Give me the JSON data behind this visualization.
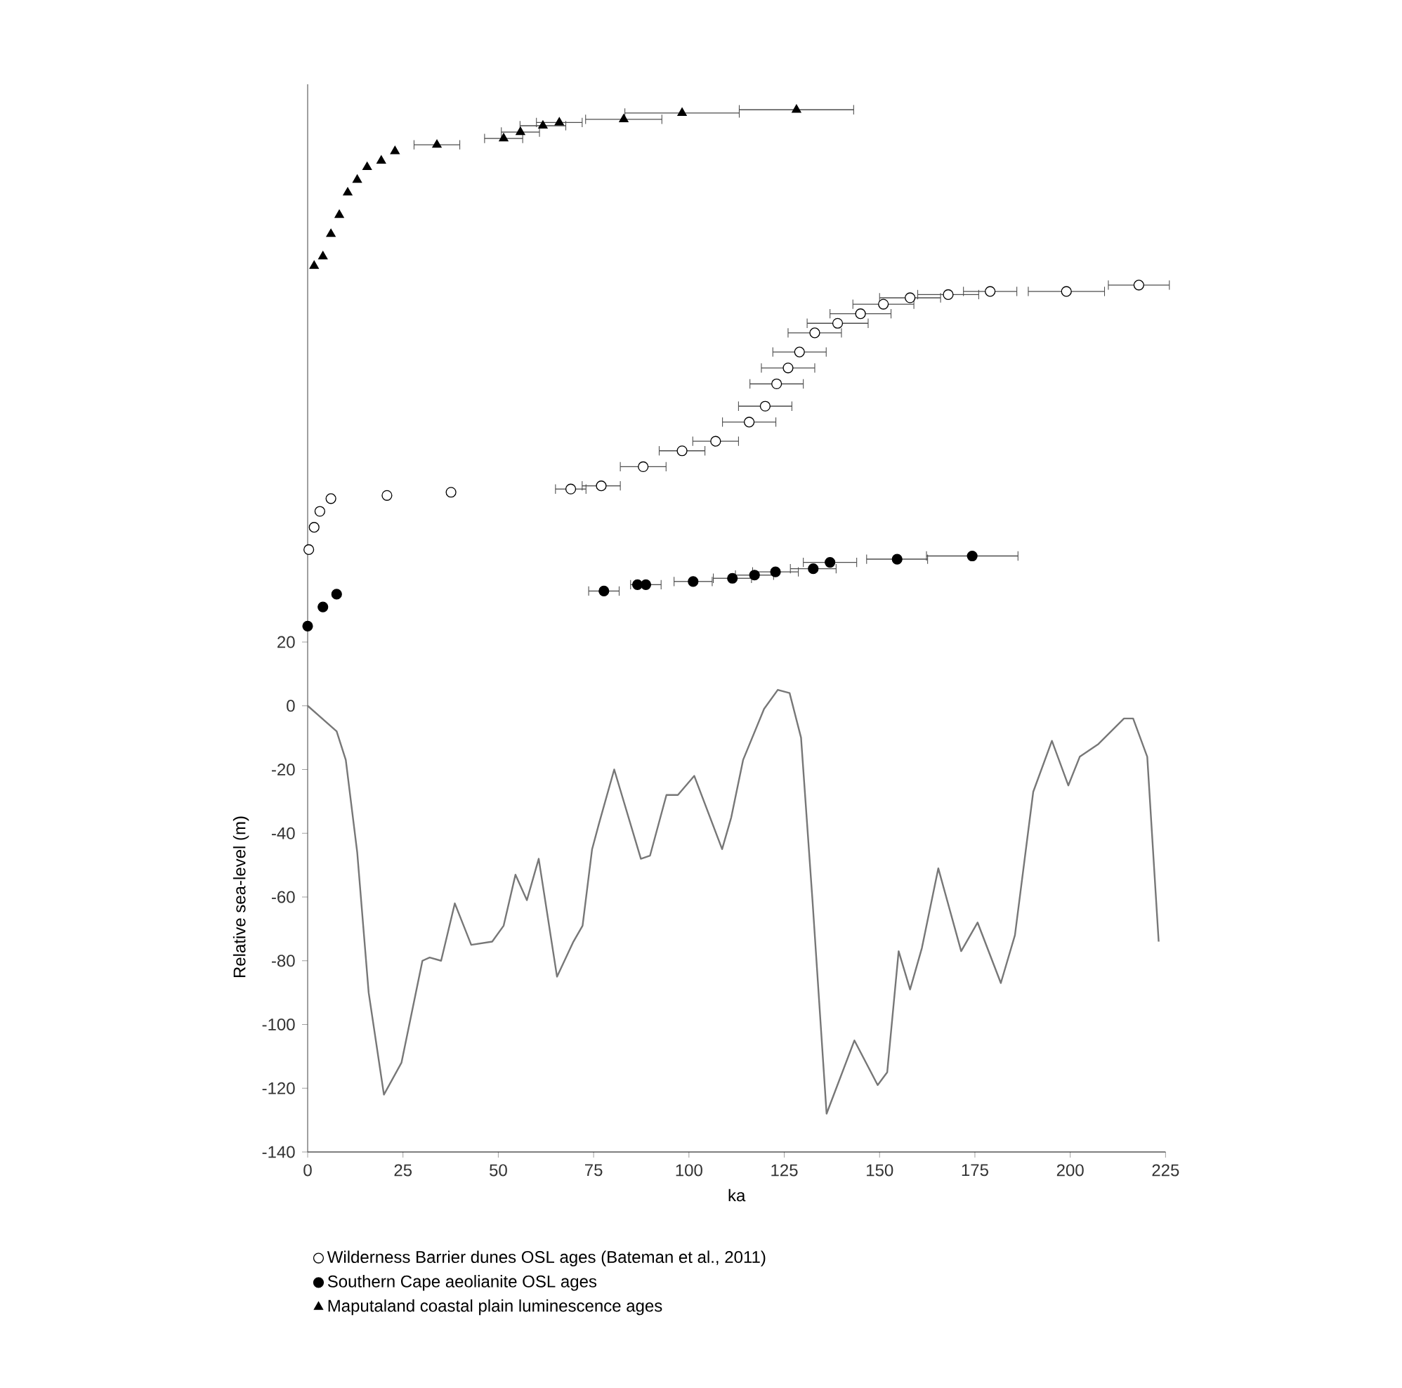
{
  "chart_data": {
    "type": "line",
    "xlabel": "ka",
    "ylabel": "Relative sea-level (m)",
    "xlim": [
      0,
      225
    ],
    "xticks": [
      0,
      25,
      50,
      75,
      100,
      125,
      150,
      175,
      200,
      225
    ],
    "ylim": [
      -140,
      195
    ],
    "yticks": [
      -140,
      -120,
      -100,
      -80,
      -60,
      -40,
      -20,
      0,
      20
    ],
    "legend": "bottom",
    "series": [
      {
        "color": "#777777",
        "marker": "none",
        "x": [
          0,
          7.6,
          10,
          13,
          16,
          20,
          24.6,
          30.1,
          32,
          35,
          38.6,
          42.9,
          48.4,
          51.4,
          54.5,
          57.5,
          60.6,
          65.4,
          69.7,
          72.1,
          74.6,
          76.4,
          80.4,
          87.4,
          89.8,
          94.1,
          97.1,
          101.4,
          108.7,
          111.1,
          114.2,
          119.7,
          123.3,
          126.4,
          129.4,
          132.4,
          136.1,
          143.4,
          149.5,
          152,
          155,
          158,
          161.1,
          165.4,
          171.4,
          175.7,
          181.8,
          185.5,
          190.3,
          195.2,
          199.5,
          202.5,
          207.4,
          214.1,
          216.5,
          220.2,
          223.2
        ],
        "values": [
          0,
          -8,
          -17,
          -46,
          -90,
          -122,
          -112,
          -80,
          -79,
          -80,
          -62,
          -75,
          -74,
          -69,
          -53,
          -61,
          -48,
          -85,
          -74,
          -69,
          -45,
          -37,
          -20,
          -48,
          -47,
          -28,
          -28,
          -22,
          -45,
          -35,
          -17,
          -1,
          5,
          4,
          -10,
          -61,
          -128,
          -105,
          -119,
          -115,
          -77,
          -89,
          -76,
          -51,
          -77,
          -68,
          -87,
          -72,
          -27,
          -11,
          -25,
          -16,
          -12,
          -4,
          -4,
          -16,
          -74
        ]
      },
      {
        "type": "scatter",
        "name": "Wilderness Barrier dunes OSL ages (Bateman et al., 2011)",
        "color": "#ffffff",
        "marker": "circle",
        "x": [
          0.3,
          1.7,
          3.2,
          6.1,
          20.8,
          37.6,
          69,
          77,
          88,
          98.2,
          107,
          115.8,
          120,
          123,
          126,
          129,
          133,
          139,
          145,
          151,
          158,
          168,
          179,
          199,
          218
        ],
        "values": [
          49,
          56,
          61,
          65,
          66,
          67,
          68,
          69,
          75,
          80,
          83,
          89,
          94,
          101,
          106,
          111,
          117,
          120,
          123,
          126,
          128,
          129,
          130,
          130,
          132
        ],
        "xerrors": [
          null,
          null,
          null,
          null,
          null,
          null,
          4,
          5,
          6,
          6,
          6,
          7,
          7,
          7,
          7,
          7,
          7,
          8,
          8,
          8,
          8,
          8,
          7,
          10,
          8
        ]
      },
      {
        "type": "scatter",
        "name": "Southern Cape aeolianite OSL ages",
        "color": "#000000",
        "marker": "circle",
        "x": [
          0,
          4,
          7.6,
          77.7,
          86.5,
          88.7,
          101.1,
          111.4,
          117.2,
          122.7,
          132.6,
          137,
          154.6,
          174.3
        ],
        "values": [
          25,
          31,
          35,
          36,
          38,
          38,
          39,
          40,
          41,
          42,
          43,
          45,
          46,
          47
        ],
        "xerrors": [
          null,
          null,
          null,
          4,
          null,
          4,
          5,
          5,
          5,
          6,
          6,
          7,
          8,
          12
        ]
      },
      {
        "type": "scatter",
        "name": "Maputaland coastal plain luminescence ages",
        "color": "#000000",
        "marker": "triangle",
        "x": [
          1.7,
          4,
          6.1,
          8.3,
          10.5,
          13,
          15.6,
          19.3,
          22.9,
          33.9,
          51.4,
          55.8,
          61.7,
          66,
          82.9,
          98.2,
          128.2
        ],
        "values": [
          138,
          141,
          148,
          154,
          161,
          165,
          169,
          171,
          174,
          176,
          178,
          180,
          182,
          183,
          184,
          186,
          187
        ],
        "xerrors": [
          null,
          null,
          null,
          null,
          null,
          null,
          null,
          null,
          null,
          6,
          5,
          5,
          6,
          6,
          10,
          15,
          15
        ]
      }
    ]
  }
}
